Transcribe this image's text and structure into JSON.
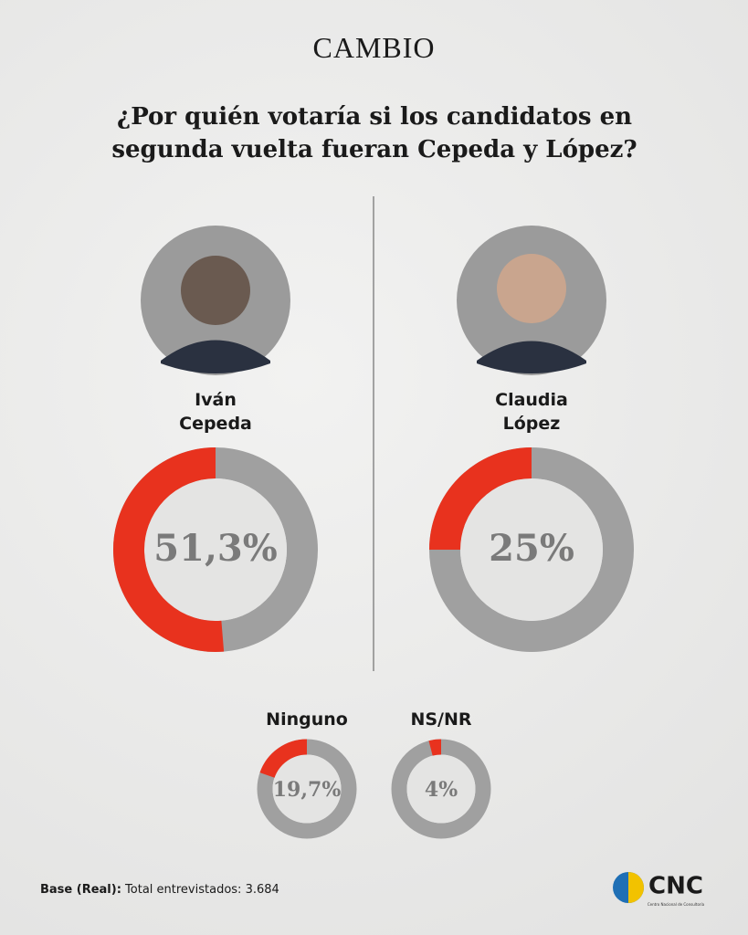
{
  "header": {
    "brand": "CAMBIO",
    "title": "¿Por quién votaría si los candidatos en segunda vuelta fueran Cepeda y López?"
  },
  "chart_data": [
    {
      "type": "donut",
      "title": "Iván Cepeda",
      "values": [
        51.3
      ],
      "value_labels": [
        "51,3%"
      ],
      "color": "#e8321e",
      "track_color": "#a0a0a0",
      "ylim": [
        0,
        100
      ]
    },
    {
      "type": "donut",
      "title": "Claudia López",
      "values": [
        25
      ],
      "value_labels": [
        "25%"
      ],
      "color": "#e8321e",
      "track_color": "#a0a0a0",
      "ylim": [
        0,
        100
      ]
    },
    {
      "type": "donut",
      "title": "Ninguno",
      "values": [
        19.7
      ],
      "value_labels": [
        "19,7%"
      ],
      "color": "#e8321e",
      "track_color": "#a0a0a0",
      "ylim": [
        0,
        100
      ]
    },
    {
      "type": "donut",
      "title": "NS/NR",
      "values": [
        4
      ],
      "value_labels": [
        "4%"
      ],
      "color": "#e8321e",
      "track_color": "#a0a0a0",
      "ylim": [
        0,
        100
      ]
    }
  ],
  "footer": {
    "base_label": "Base (Real):",
    "base_text": "Total entrevistados: 3.684",
    "logo": "CNC",
    "logo_subtitle": "Centro Nacional de Consultoría"
  }
}
